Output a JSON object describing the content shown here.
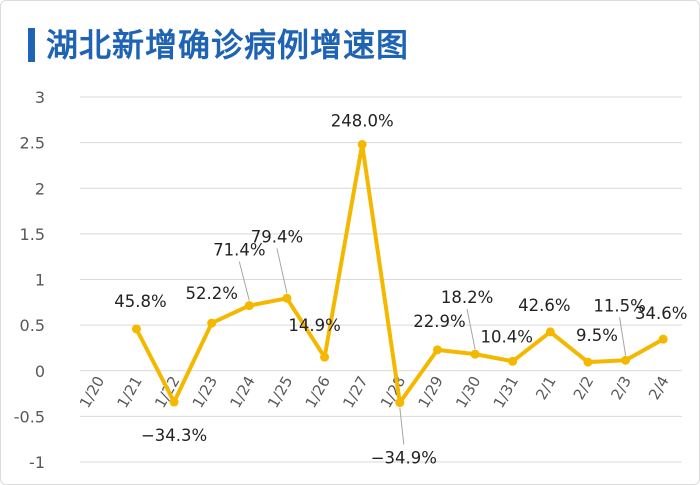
{
  "title": "湖北新增确诊病例增速图",
  "colors": {
    "title": "#1f64b4",
    "line": "#f5b800",
    "grid": "#d9d9d9",
    "axis_text": "#595959"
  },
  "chart_data": {
    "type": "line",
    "categories": [
      "1/20",
      "1/21",
      "1/22",
      "1/23",
      "1/24",
      "1/25",
      "1/26",
      "1/27",
      "1/28",
      "1/29",
      "1/30",
      "1/31",
      "2/1",
      "2/2",
      "2/3",
      "2/4"
    ],
    "series": [
      {
        "values": [
          null,
          0.458,
          -0.343,
          0.522,
          0.714,
          0.794,
          0.149,
          2.48,
          -0.349,
          0.229,
          0.182,
          0.104,
          0.426,
          0.095,
          0.115,
          0.346
        ]
      }
    ],
    "data_labels": [
      "",
      "45.8%",
      "−34.3%",
      "52.2%",
      "71.4%",
      "79.4%",
      "14.9%",
      "248.0%",
      "−34.9%",
      "22.9%",
      "18.2%",
      "10.4%",
      "42.6%",
      "9.5%",
      "11.5%",
      "34.6%"
    ],
    "yticks": [
      "3",
      "2.5",
      "2",
      "1.5",
      "1",
      "0.5",
      "0",
      "-0.5",
      "-1"
    ],
    "ylim": [
      -1,
      3
    ],
    "grid": true,
    "xlabel": "",
    "ylabel": ""
  }
}
